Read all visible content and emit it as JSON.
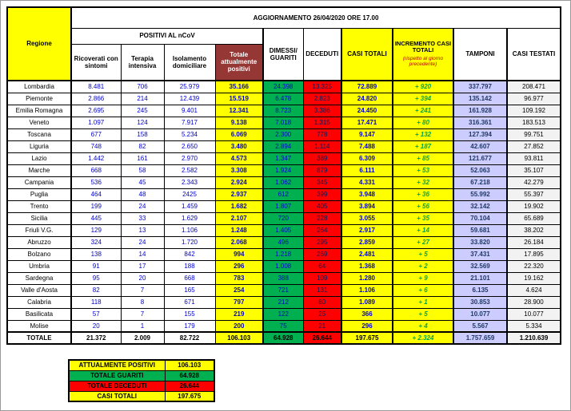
{
  "title": "AGGIORNAMENTO 26/04/2020 ORE 17.00",
  "headers": {
    "region": "Regione",
    "group": "POSITIVI AL nCoV",
    "sub": [
      "Ricoverati con sintomi",
      "Terapia intensiva",
      "Isolamento domiciliare",
      "Totale attualmente positivi"
    ],
    "dimessi": "DIMESSI/ GUARITI",
    "deceduti": "DECEDUTI",
    "casi_totali": "CASI TOTALI",
    "incremento": "INCREMENTO  CASI  TOTALI",
    "incremento_note": "(rispetto al giorno precedente)",
    "tamponi": "TAMPONI",
    "casi_testati": "CASI TESTATI"
  },
  "colors": {
    "yellow": "#FFFF00",
    "green": "#00B050",
    "red": "#FF0000",
    "lavender": "#CCCCFF",
    "header_maroon": "#953735",
    "blue_text": "#0000CC",
    "green_text": "#00A550"
  },
  "chart_data": {
    "type": "table",
    "columns": [
      "Regione",
      "Ricoverati con sintomi",
      "Terapia intensiva",
      "Isolamento domiciliare",
      "Totale attualmente positivi",
      "DIMESSI/GUARITI",
      "DECEDUTI",
      "CASI TOTALI",
      "INCREMENTO CASI TOTALI (rispetto al giorno precedente)",
      "TAMPONI",
      "CASI TESTATI"
    ],
    "rows": [
      {
        "region": "Lombardia",
        "values": [
          "8.481",
          "706",
          "25.979",
          "35.166",
          "24.398",
          "13.325",
          "72.889",
          "+ 920",
          "337.797",
          "208.471"
        ]
      },
      {
        "region": "Piemonte",
        "values": [
          "2.866",
          "214",
          "12.439",
          "15.519",
          "6.478",
          "2.823",
          "24.820",
          "+ 394",
          "135.142",
          "96.977"
        ]
      },
      {
        "region": "Emilia Romagna",
        "values": [
          "2.695",
          "245",
          "9.401",
          "12.341",
          "8.723",
          "3.386",
          "24.450",
          "+ 241",
          "161.928",
          "109.192"
        ]
      },
      {
        "region": "Veneto",
        "values": [
          "1.097",
          "124",
          "7.917",
          "9.138",
          "7.018",
          "1.315",
          "17.471",
          "+ 80",
          "316.361",
          "183.513"
        ]
      },
      {
        "region": "Toscana",
        "values": [
          "677",
          "158",
          "5.234",
          "6.069",
          "2.300",
          "778",
          "9.147",
          "+ 132",
          "127.394",
          "99.751"
        ]
      },
      {
        "region": "Liguria",
        "values": [
          "748",
          "82",
          "2.650",
          "3.480",
          "2.894",
          "1.114",
          "7.488",
          "+ 187",
          "42.607",
          "27.852"
        ]
      },
      {
        "region": "Lazio",
        "values": [
          "1.442",
          "161",
          "2.970",
          "4.573",
          "1.347",
          "389",
          "6.309",
          "+ 85",
          "121.677",
          "93.811"
        ]
      },
      {
        "region": "Marche",
        "values": [
          "668",
          "58",
          "2.582",
          "3.308",
          "1.924",
          "879",
          "6.111",
          "+ 53",
          "52.063",
          "35.107"
        ]
      },
      {
        "region": "Campania",
        "values": [
          "536",
          "45",
          "2.343",
          "2.924",
          "1.062",
          "345",
          "4.331",
          "+ 32",
          "67.218",
          "42.279"
        ]
      },
      {
        "region": "Puglia",
        "values": [
          "464",
          "48",
          "2425",
          "2.937",
          "612",
          "399",
          "3.948",
          "+ 36",
          "55.992",
          "55.397"
        ]
      },
      {
        "region": "Trento",
        "values": [
          "199",
          "24",
          "1.459",
          "1.682",
          "1.807",
          "405",
          "3.894",
          "+ 56",
          "32.142",
          "19.902"
        ]
      },
      {
        "region": "Sicilia",
        "values": [
          "445",
          "33",
          "1.629",
          "2.107",
          "720",
          "228",
          "3.055",
          "+ 35",
          "70.104",
          "65.689"
        ]
      },
      {
        "region": "Friuli V.G.",
        "values": [
          "129",
          "13",
          "1.106",
          "1.248",
          "1.405",
          "264",
          "2.917",
          "+ 14",
          "59.681",
          "38.202"
        ]
      },
      {
        "region": "Abruzzo",
        "values": [
          "324",
          "24",
          "1.720",
          "2.068",
          "496",
          "295",
          "2.859",
          "+ 27",
          "33.820",
          "26.184"
        ]
      },
      {
        "region": "Bolzano",
        "values": [
          "138",
          "14",
          "842",
          "994",
          "1.218",
          "269",
          "2.481",
          "+ 5",
          "37.431",
          "17.895"
        ]
      },
      {
        "region": "Umbria",
        "values": [
          "91",
          "17",
          "188",
          "296",
          "1.008",
          "64",
          "1.368",
          "+ 2",
          "32.569",
          "22.320"
        ]
      },
      {
        "region": "Sardegna",
        "values": [
          "95",
          "20",
          "668",
          "783",
          "388",
          "109",
          "1.280",
          "+ 9",
          "21.101",
          "19.162"
        ]
      },
      {
        "region": "Valle d'Aosta",
        "values": [
          "82",
          "7",
          "165",
          "254",
          "721",
          "131",
          "1.106",
          "+ 6",
          "6.135",
          "4.624"
        ]
      },
      {
        "region": "Calabria",
        "values": [
          "118",
          "8",
          "671",
          "797",
          "212",
          "80",
          "1.089",
          "+ 1",
          "30.853",
          "28.900"
        ]
      },
      {
        "region": "Basilicata",
        "values": [
          "57",
          "7",
          "155",
          "219",
          "122",
          "25",
          "366",
          "+ 5",
          "10.077",
          "10.077"
        ]
      },
      {
        "region": "Molise",
        "values": [
          "20",
          "1",
          "179",
          "200",
          "75",
          "21",
          "296",
          "+ 4",
          "5.567",
          "5.334"
        ]
      }
    ],
    "total": {
      "region": "TOTALE",
      "values": [
        "21.372",
        "2.009",
        "82.722",
        "106.103",
        "64.928",
        "26.644",
        "197.675",
        "+ 2.324",
        "1.757.659",
        "1.210.639"
      ]
    },
    "summary": [
      {
        "label": "ATTUALMENTE POSITIVI",
        "value": "106.103",
        "color": "yellow"
      },
      {
        "label": "TOTALE GUARITI",
        "value": "64.928",
        "color": "green"
      },
      {
        "label": "TOTALE DECEDUTI",
        "value": "26.644",
        "color": "red"
      },
      {
        "label": "CASI TOTALI",
        "value": "197.675",
        "color": "yellow"
      }
    ]
  }
}
